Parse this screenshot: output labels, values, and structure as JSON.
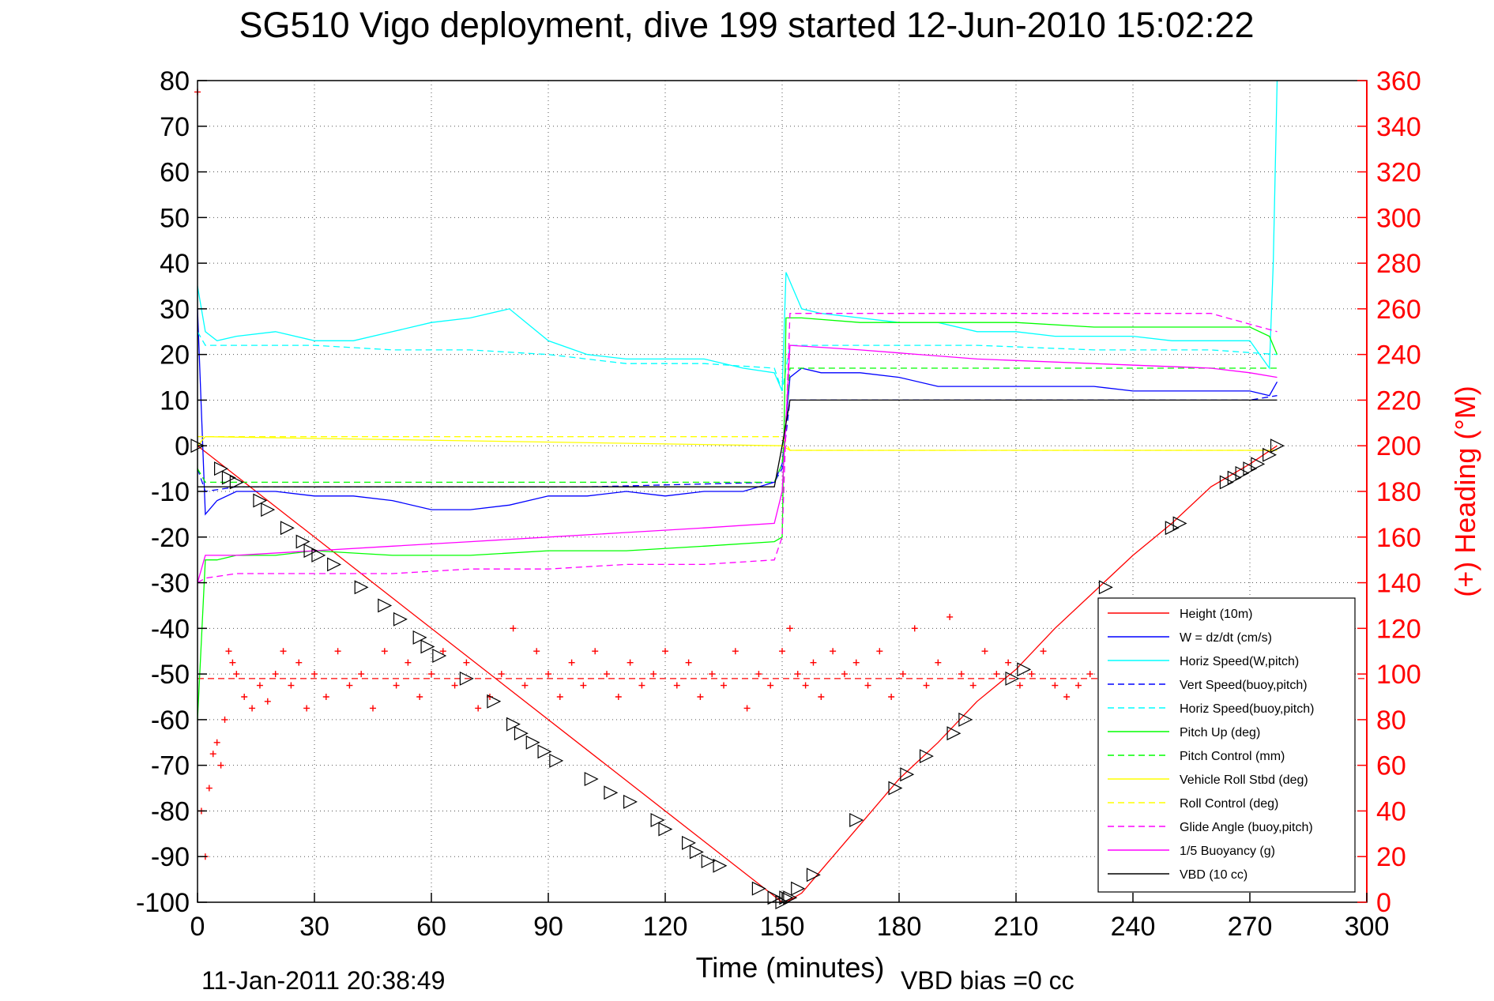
{
  "chart_data": {
    "type": "line",
    "title": "SG510 Vigo deployment, dive 199 started 12-Jun-2010 15:02:22",
    "xlabel": "Time (minutes)",
    "ylabel_right": "(+) Heading (°M)",
    "footer_left": "11-Jan-2011 20:38:49",
    "footer_right": "VBD bias =0 cc",
    "xlim": [
      0,
      300
    ],
    "ylim_left": [
      -100,
      80
    ],
    "ylim_right": [
      0,
      360
    ],
    "xticks": [
      0,
      30,
      60,
      90,
      120,
      150,
      180,
      210,
      240,
      270,
      300
    ],
    "yticks_left": [
      80,
      70,
      60,
      50,
      40,
      30,
      20,
      10,
      0,
      -10,
      -20,
      -30,
      -40,
      -50,
      -60,
      -70,
      -80,
      -90,
      -100
    ],
    "yticks_right": [
      360,
      340,
      320,
      300,
      280,
      260,
      240,
      220,
      200,
      180,
      160,
      140,
      120,
      100,
      80,
      60,
      40,
      20,
      0
    ],
    "grid": true,
    "legend_position": "bottom-right",
    "colors": {
      "red": "#ff0000",
      "blue": "#0000ff",
      "cyan": "#00ffff",
      "green": "#00ff00",
      "yellow": "#ffff00",
      "magenta": "#ff00ff",
      "black": "#000000"
    },
    "series": [
      {
        "name": "Height (10m)",
        "color": "#ff0000",
        "dash": "solid",
        "x": [
          0,
          150,
          151,
          155,
          160,
          170,
          180,
          190,
          200,
          210,
          220,
          230,
          240,
          250,
          260,
          270,
          277
        ],
        "y": [
          0,
          -100,
          -100,
          -98,
          -93,
          -83,
          -73,
          -65,
          -56,
          -49,
          -40,
          -32,
          -24,
          -17,
          -9,
          -4,
          0
        ]
      },
      {
        "name": "W = dz/dt (cm/s)",
        "color": "#0000ff",
        "dash": "solid",
        "x": [
          0,
          2,
          5,
          10,
          20,
          30,
          40,
          50,
          60,
          70,
          80,
          90,
          100,
          110,
          120,
          130,
          140,
          148,
          150,
          152,
          155,
          160,
          170,
          180,
          190,
          200,
          210,
          220,
          230,
          240,
          250,
          260,
          270,
          275,
          277
        ],
        "y": [
          30,
          -15,
          -12,
          -10,
          -10,
          -11,
          -11,
          -12,
          -14,
          -14,
          -13,
          -11,
          -11,
          -10,
          -11,
          -10,
          -10,
          -8,
          -4,
          15,
          17,
          16,
          16,
          15,
          13,
          13,
          13,
          13,
          13,
          12,
          12,
          12,
          12,
          11,
          14
        ]
      },
      {
        "name": "Horiz Speed(W,pitch)",
        "color": "#00ffff",
        "dash": "solid",
        "x": [
          0,
          2,
          5,
          10,
          20,
          30,
          40,
          50,
          60,
          70,
          80,
          90,
          100,
          110,
          120,
          130,
          140,
          148,
          150,
          151,
          155,
          160,
          170,
          180,
          190,
          200,
          210,
          220,
          230,
          240,
          250,
          260,
          270,
          275,
          276,
          277
        ],
        "y": [
          35,
          25,
          23,
          24,
          25,
          23,
          23,
          25,
          27,
          28,
          30,
          23,
          20,
          19,
          19,
          19,
          17,
          16,
          12,
          38,
          30,
          29,
          28,
          27,
          27,
          25,
          25,
          24,
          24,
          24,
          23,
          23,
          23,
          17,
          40,
          80
        ]
      },
      {
        "name": "Vert Speed(buoy,pitch)",
        "color": "#0000ff",
        "dash": "dashed",
        "x": [
          0,
          2,
          10,
          50,
          100,
          148,
          150,
          152,
          200,
          250,
          270,
          277
        ],
        "y": [
          -5,
          -10,
          -9,
          -9,
          -9,
          -8,
          -5,
          10,
          10,
          10,
          10,
          11
        ]
      },
      {
        "name": "Horiz Speed(buoy,pitch)",
        "color": "#00ffff",
        "dash": "dashed",
        "x": [
          0,
          2,
          10,
          30,
          50,
          70,
          90,
          110,
          130,
          148,
          150,
          152,
          170,
          200,
          230,
          260,
          277
        ],
        "y": [
          25,
          22,
          22,
          22,
          21,
          21,
          20,
          18,
          18,
          17,
          12,
          22,
          22,
          22,
          21,
          21,
          20
        ]
      },
      {
        "name": "Pitch Up (deg)",
        "color": "#00ff00",
        "dash": "solid",
        "x": [
          0,
          2,
          5,
          10,
          20,
          30,
          50,
          70,
          90,
          110,
          130,
          148,
          150,
          151,
          155,
          170,
          190,
          210,
          230,
          250,
          270,
          275,
          277
        ],
        "y": [
          -60,
          -25,
          -25,
          -24,
          -24,
          -23,
          -24,
          -24,
          -23,
          -23,
          -22,
          -21,
          -20,
          28,
          28,
          27,
          27,
          27,
          26,
          26,
          26,
          24,
          20
        ]
      },
      {
        "name": "Pitch Control (mm)",
        "color": "#00ff00",
        "dash": "dashed",
        "x": [
          0,
          2,
          10,
          50,
          100,
          148,
          150,
          152,
          200,
          250,
          277
        ],
        "y": [
          -5,
          -8,
          -8,
          -8,
          -8,
          -8,
          -4,
          17,
          17,
          17,
          17
        ]
      },
      {
        "name": "Vehicle Roll Stbd (deg)",
        "color": "#ffff00",
        "dash": "solid",
        "x": [
          0,
          2,
          150,
          152,
          277
        ],
        "y": [
          0,
          2,
          0,
          -1,
          -1
        ]
      },
      {
        "name": "Roll Control (deg)",
        "color": "#ffff00",
        "dash": "dashed",
        "x": [
          0,
          2,
          150,
          152,
          277
        ],
        "y": [
          2,
          2,
          2,
          -1,
          -1
        ]
      },
      {
        "name": "Glide Angle (buoy,pitch)",
        "color": "#ff00ff",
        "dash": "dashed",
        "x": [
          0,
          2,
          10,
          30,
          50,
          70,
          90,
          110,
          130,
          148,
          150,
          152,
          170,
          200,
          230,
          260,
          277
        ],
        "y": [
          -30,
          -29,
          -28,
          -28,
          -28,
          -27,
          -27,
          -26,
          -26,
          -25,
          -20,
          29,
          29,
          29,
          29,
          29,
          25
        ]
      },
      {
        "name": "1/5 Buoyancy (g)",
        "color": "#ff00ff",
        "dash": "solid",
        "x": [
          0,
          2,
          10,
          30,
          50,
          70,
          90,
          110,
          130,
          148,
          150,
          152,
          170,
          200,
          230,
          260,
          270,
          277
        ],
        "y": [
          -30,
          -24,
          -24,
          -23,
          -22,
          -21,
          -20,
          -19,
          -18,
          -17,
          -10,
          22,
          21,
          19,
          18,
          17,
          16,
          15
        ]
      },
      {
        "name": "VBD (10 cc)",
        "color": "#000000",
        "dash": "solid",
        "x": [
          0,
          2,
          148,
          150,
          152,
          277
        ],
        "y": [
          -9,
          -9,
          -9,
          0,
          10,
          10
        ]
      }
    ],
    "heading": {
      "color": "#ff0000",
      "marker": "+",
      "axis": "right",
      "mean": 98,
      "x": [
        0,
        1,
        2,
        3,
        4,
        5,
        6,
        7,
        8,
        9,
        10,
        12,
        14,
        16,
        18,
        20,
        22,
        24,
        26,
        28,
        30,
        33,
        36,
        39,
        42,
        45,
        48,
        51,
        54,
        57,
        60,
        63,
        66,
        69,
        72,
        75,
        78,
        81,
        84,
        87,
        90,
        93,
        96,
        99,
        102,
        105,
        108,
        111,
        114,
        117,
        120,
        123,
        126,
        129,
        132,
        135,
        138,
        141,
        144,
        147,
        150,
        152,
        154,
        156,
        158,
        160,
        163,
        166,
        169,
        172,
        175,
        178,
        181,
        184,
        187,
        190,
        193,
        196,
        199,
        202,
        205,
        208,
        211,
        214,
        217,
        220,
        223,
        226,
        229,
        232,
        235
      ],
      "y": [
        355,
        40,
        20,
        50,
        65,
        70,
        60,
        80,
        110,
        105,
        100,
        90,
        85,
        95,
        88,
        100,
        110,
        95,
        105,
        85,
        100,
        90,
        110,
        95,
        100,
        85,
        110,
        95,
        105,
        90,
        100,
        110,
        95,
        105,
        85,
        90,
        100,
        120,
        95,
        110,
        100,
        90,
        105,
        95,
        110,
        100,
        90,
        105,
        95,
        100,
        110,
        95,
        105,
        90,
        100,
        95,
        110,
        85,
        100,
        95,
        110,
        120,
        100,
        95,
        105,
        90,
        110,
        100,
        105,
        95,
        110,
        90,
        100,
        120,
        95,
        105,
        125,
        100,
        95,
        110,
        100,
        105,
        95,
        100,
        110,
        95,
        90,
        95,
        100,
        95,
        98
      ]
    },
    "markers": {
      "shape": "triangle",
      "color": "#000000",
      "x": [
        0,
        6,
        8,
        10,
        16,
        18,
        23,
        27,
        29,
        31,
        35,
        42,
        48,
        52,
        57,
        59,
        62,
        69,
        76,
        81,
        83,
        86,
        89,
        92,
        101,
        106,
        111,
        118,
        120,
        126,
        128,
        131,
        134,
        144,
        148,
        150,
        151,
        152,
        154,
        158,
        169,
        179,
        182,
        187,
        194,
        197,
        209,
        212,
        233,
        250,
        252,
        264,
        266,
        268,
        270,
        272,
        275,
        277
      ],
      "y": [
        0,
        -5,
        -7,
        -8,
        -12,
        -14,
        -18,
        -21,
        -23,
        -24,
        -26,
        -31,
        -35,
        -38,
        -42,
        -44,
        -46,
        -51,
        -56,
        -61,
        -63,
        -65,
        -67,
        -69,
        -73,
        -76,
        -78,
        -82,
        -84,
        -87,
        -89,
        -91,
        -92,
        -97,
        -99,
        -100,
        -99,
        -99,
        -97,
        -94,
        -82,
        -75,
        -72,
        -68,
        -63,
        -60,
        -51,
        -49,
        -31,
        -18,
        -17,
        -8,
        -7,
        -6,
        -5,
        -4,
        -2,
        0
      ]
    }
  }
}
